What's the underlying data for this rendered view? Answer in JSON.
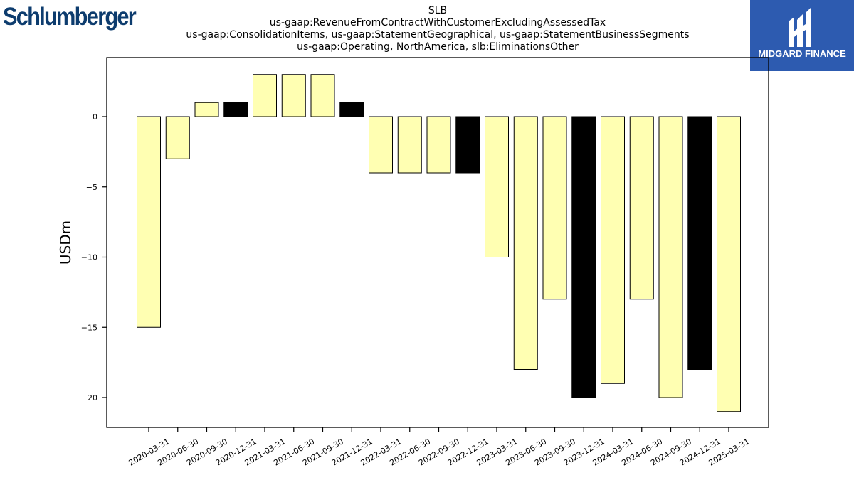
{
  "logos": {
    "company": "Schlumberger",
    "brand": "MIDGARD FINANCE",
    "brand_color": "#2d5bb0"
  },
  "chart_data": {
    "type": "bar",
    "title_lines": [
      "SLB",
      "us-gaap:RevenueFromContractWithCustomerExcludingAssessedTax",
      "us-gaap:ConsolidationItems, us-gaap:StatementGeographical, us-gaap:StatementBusinessSegments",
      "us-gaap:Operating, NorthAmerica, slb:EliminationsOther"
    ],
    "ylabel": "USDm",
    "xlabel": "",
    "ylim": [
      -22,
      4
    ],
    "yticks": [
      0,
      -5,
      -10,
      -15,
      -20
    ],
    "grid": false,
    "categories": [
      "2020-03-31",
      "2020-06-30",
      "2020-09-30",
      "2020-12-31",
      "2021-03-31",
      "2021-06-30",
      "2021-09-30",
      "2021-12-31",
      "2022-03-31",
      "2022-06-30",
      "2022-09-30",
      "2022-12-31",
      "2023-03-31",
      "2023-06-30",
      "2023-09-30",
      "2023-12-31",
      "2024-03-31",
      "2024-06-30",
      "2024-09-30",
      "2024-12-31",
      "2025-03-31"
    ],
    "values": [
      -15,
      -3,
      1,
      1,
      3,
      3,
      3,
      1,
      -4,
      -4,
      -4,
      -4,
      -10,
      -18,
      -13,
      -20,
      -19,
      -13,
      -20,
      -18,
      -21
    ],
    "fill_colors": [
      "#ffffb2",
      "#ffffb2",
      "#ffffb2",
      "#000000",
      "#ffffb2",
      "#ffffb2",
      "#ffffb2",
      "#000000",
      "#ffffb2",
      "#ffffb2",
      "#ffffb2",
      "#000000",
      "#ffffb2",
      "#ffffb2",
      "#ffffb2",
      "#000000",
      "#ffffb2",
      "#ffffb2",
      "#ffffb2",
      "#000000",
      "#ffffb2"
    ]
  }
}
